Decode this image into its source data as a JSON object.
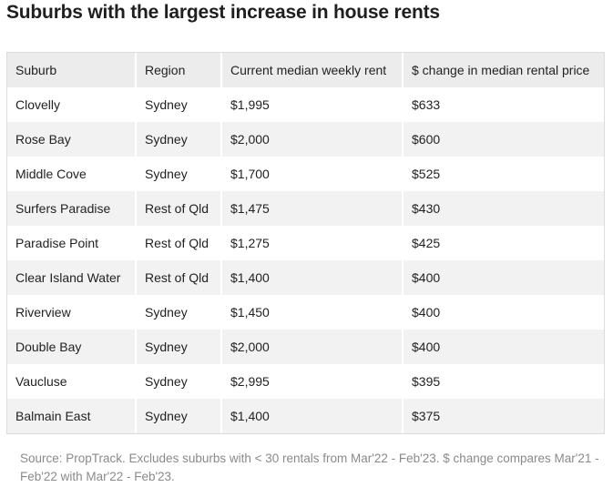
{
  "title": "Suburbs with the largest increase in house rents",
  "table": {
    "headers": [
      "Suburb",
      "Region",
      "Current median weekly rent",
      "$ change in median rental price"
    ],
    "rows": [
      [
        "Clovelly",
        "Sydney",
        "$1,995",
        "$633"
      ],
      [
        "Rose Bay",
        "Sydney",
        "$2,000",
        "$600"
      ],
      [
        "Middle Cove",
        "Sydney",
        "$1,700",
        "$525"
      ],
      [
        "Surfers Paradise",
        "Rest of Qld",
        "$1,475",
        "$430"
      ],
      [
        "Paradise Point",
        "Rest of Qld",
        "$1,275",
        "$425"
      ],
      [
        "Clear Island Water",
        "Rest of Qld",
        "$1,400",
        "$400"
      ],
      [
        "Riverview",
        "Sydney",
        "$1,450",
        "$400"
      ],
      [
        "Double Bay",
        "Sydney",
        "$2,000",
        "$400"
      ],
      [
        "Vaucluse",
        "Sydney",
        "$2,995",
        "$395"
      ],
      [
        "Balmain East",
        "Sydney",
        "$1,400",
        "$375"
      ]
    ]
  },
  "source": "Source: PropTrack. Excludes suburbs with < 30 rentals from Mar'22 - Feb'23. $ change compares Mar'21 - Feb'22 with Mar'22 - Feb'23."
}
